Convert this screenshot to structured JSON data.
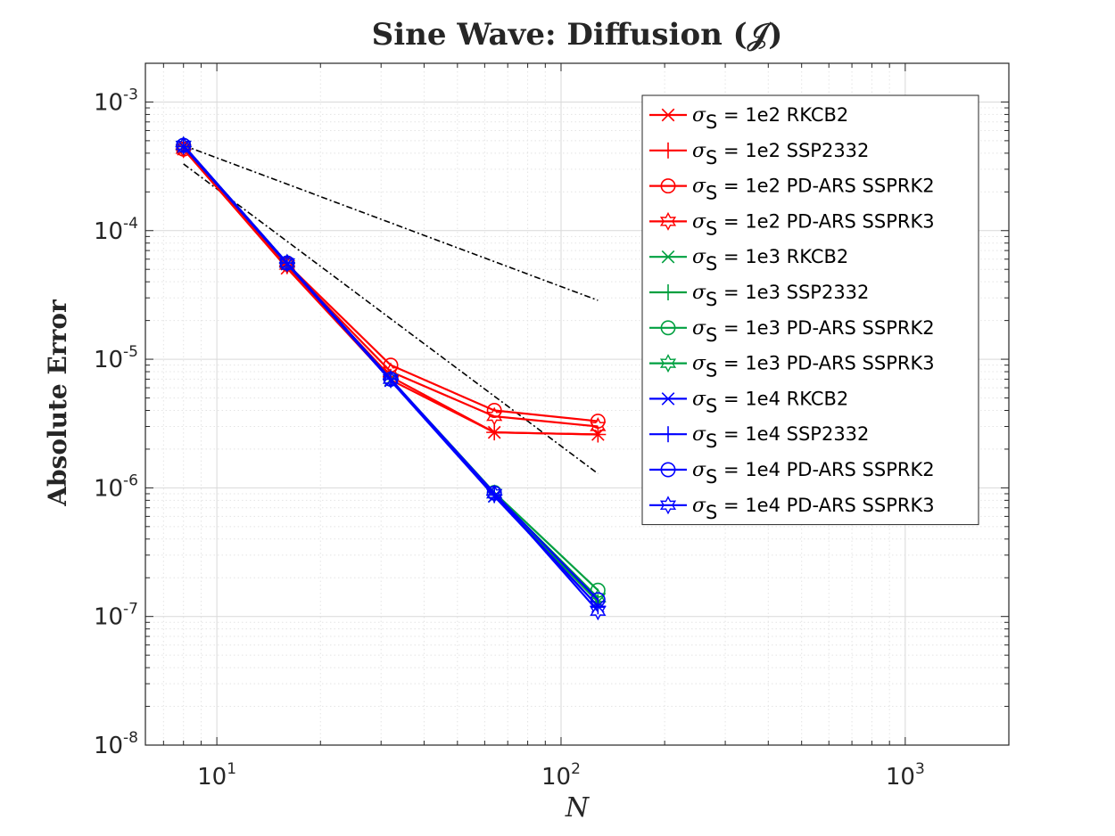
{
  "chart_data": {
    "type": "line",
    "title": "Sine Wave: Diffusion (𝒥)",
    "xlabel": "N",
    "ylabel": "Absolute Error",
    "xscale": "log",
    "yscale": "log",
    "xlim": [
      6.2,
      2000
    ],
    "ylim": [
      1e-08,
      0.002
    ],
    "x_ticks": [
      {
        "value": 10,
        "base": "10",
        "exp": "1"
      },
      {
        "value": 100,
        "base": "10",
        "exp": "2"
      },
      {
        "value": 1000,
        "base": "10",
        "exp": "3"
      }
    ],
    "y_ticks": [
      {
        "value": 0.001,
        "base": "10",
        "exp": "-3"
      },
      {
        "value": 0.0001,
        "base": "10",
        "exp": "-4"
      },
      {
        "value": 1e-05,
        "base": "10",
        "exp": "-5"
      },
      {
        "value": 1e-06,
        "base": "10",
        "exp": "-6"
      },
      {
        "value": 1e-07,
        "base": "10",
        "exp": "-7"
      },
      {
        "value": 1e-08,
        "base": "10",
        "exp": "-8"
      }
    ],
    "grid": true,
    "legend_position": "top-right",
    "x": [
      8,
      16,
      32,
      64,
      128
    ],
    "series": [
      {
        "name": "σS = 1e2  RKCB2",
        "sym": "σ",
        "sub": "S",
        "rest": " = 1e2  RKCB2",
        "color": "#ff0000",
        "marker": "x",
        "values": [
          0.00043,
          5.1e-05,
          6.9e-06,
          2.7e-06,
          2.6e-06
        ]
      },
      {
        "name": "σS = 1e2  SSP2332",
        "sym": "σ",
        "sub": "S",
        "rest": " = 1e2  SSP2332",
        "color": "#ff0000",
        "marker": "plus",
        "values": [
          0.00043,
          5.3e-05,
          7.3e-06,
          2.7e-06,
          2.6e-06
        ]
      },
      {
        "name": "σS = 1e2  PD-ARS SSPRK2",
        "sym": "σ",
        "sub": "S",
        "rest": " = 1e2  PD-ARS SSPRK2",
        "color": "#ff0000",
        "marker": "circle",
        "values": [
          0.00043,
          5.5e-05,
          9e-06,
          4e-06,
          3.3e-06
        ]
      },
      {
        "name": "σS = 1e2  PD-ARS SSPRK3",
        "sym": "σ",
        "sub": "S",
        "rest": " = 1e2  PD-ARS SSPRK3",
        "color": "#ff0000",
        "marker": "hexagram",
        "values": [
          0.00043,
          5.4e-05,
          8e-06,
          3.6e-06,
          3e-06
        ]
      },
      {
        "name": "σS = 1e3  RKCB2",
        "sym": "σ",
        "sub": "S",
        "rest": " = 1e3  RKCB2",
        "color": "#00a040",
        "marker": "x",
        "values": [
          0.00045,
          5.5e-05,
          6.9e-06,
          8.6e-07,
          1.3e-07
        ]
      },
      {
        "name": "σS = 1e3  SSP2332",
        "sym": "σ",
        "sub": "S",
        "rest": " = 1e3  SSP2332",
        "color": "#00a040",
        "marker": "plus",
        "values": [
          0.00045,
          5.6e-05,
          7e-06,
          8.8e-07,
          1.3e-07
        ]
      },
      {
        "name": "σS = 1e3  PD-ARS SSPRK2",
        "sym": "σ",
        "sub": "S",
        "rest": " = 1e3  PD-ARS SSPRK2",
        "color": "#00a040",
        "marker": "circle",
        "values": [
          0.00046,
          5.6e-05,
          7e-06,
          9.2e-07,
          1.6e-07
        ]
      },
      {
        "name": "σS = 1e3  PD-ARS SSPRK3",
        "sym": "σ",
        "sub": "S",
        "rest": " = 1e3  PD-ARS SSPRK3",
        "color": "#00a040",
        "marker": "hexagram",
        "values": [
          0.00046,
          5.6e-05,
          7e-06,
          9e-07,
          1.4e-07
        ]
      },
      {
        "name": "σS = 1e4  RKCB2",
        "sym": "σ",
        "sub": "S",
        "rest": " = 1e4  RKCB2",
        "color": "#0000ff",
        "marker": "x",
        "values": [
          0.00045,
          5.5e-05,
          6.8e-06,
          8.6e-07,
          1.2e-07
        ]
      },
      {
        "name": "σS = 1e4  SSP2332",
        "sym": "σ",
        "sub": "S",
        "rest": " = 1e4  SSP2332",
        "color": "#0000ff",
        "marker": "plus",
        "values": [
          0.00045,
          5.6e-05,
          7e-06,
          8.8e-07,
          1.2e-07
        ]
      },
      {
        "name": "σS = 1e4  PD-ARS SSPRK2",
        "sym": "σ",
        "sub": "S",
        "rest": " = 1e4  PD-ARS SSPRK2",
        "color": "#0000ff",
        "marker": "circle",
        "values": [
          0.00046,
          5.6e-05,
          7e-06,
          9.1e-07,
          1.35e-07
        ]
      },
      {
        "name": "σS = 1e4  PD-ARS SSPRK3",
        "sym": "σ",
        "sub": "S",
        "rest": " = 1e4  PD-ARS SSPRK3",
        "color": "#0000ff",
        "marker": "hexagram",
        "values": [
          0.00046,
          5.6e-05,
          7e-06,
          9e-07,
          1.1e-07
        ]
      }
    ],
    "reference_lines": [
      {
        "order": 1,
        "color": "#000000",
        "x": [
          8,
          128
        ],
        "values": [
          0.00046,
          2.87e-05
        ]
      },
      {
        "order": 2,
        "color": "#000000",
        "x": [
          8,
          128
        ],
        "values": [
          0.00033,
          1.29e-06
        ]
      }
    ]
  }
}
